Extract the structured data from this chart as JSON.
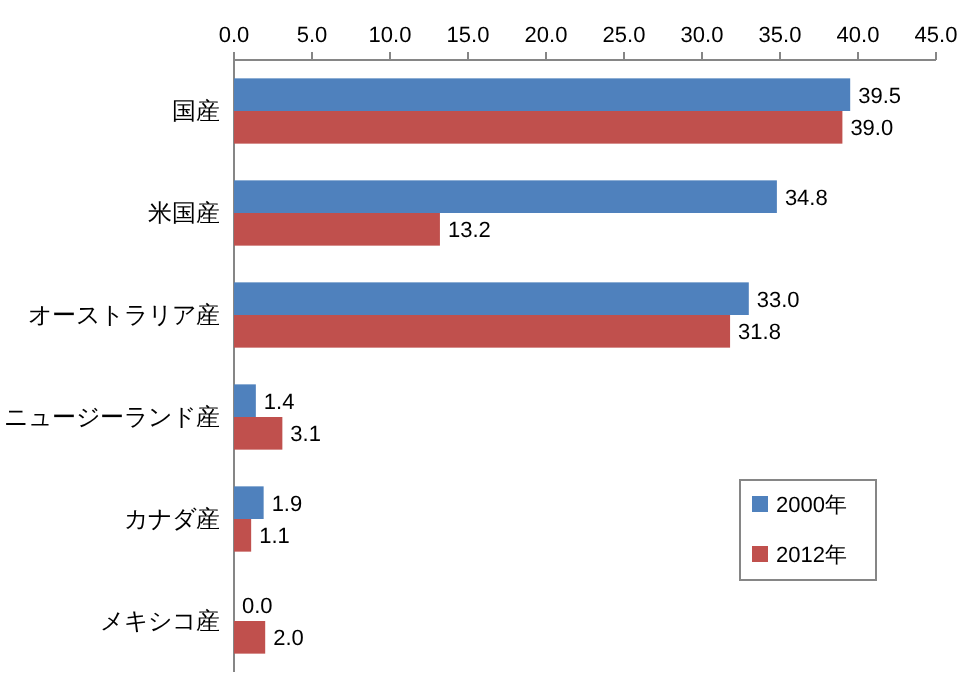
{
  "chart_data": {
    "type": "bar",
    "orientation": "horizontal",
    "categories": [
      "国産",
      "米国産",
      "オーストラリア産",
      "ニュージーランド産",
      "カナダ産",
      "メキシコ産"
    ],
    "series": [
      {
        "name": "2000年",
        "color": "#4f81bd",
        "values": [
          39.5,
          34.8,
          33.0,
          1.4,
          1.9,
          0.0
        ],
        "value_labels": [
          "39.5",
          "34.8",
          "33.0",
          "1.4",
          "1.9",
          "0.0"
        ]
      },
      {
        "name": "2012年",
        "color": "#c0504d",
        "values": [
          39.0,
          13.2,
          31.8,
          3.1,
          1.1,
          2.0
        ],
        "value_labels": [
          "39.0",
          "13.2",
          "31.8",
          "3.1",
          "1.1",
          "2.0"
        ]
      }
    ],
    "xlim": [
      0,
      45
    ],
    "xticks": [
      {
        "value": 0,
        "label": "0.0"
      },
      {
        "value": 5,
        "label": "5.0"
      },
      {
        "value": 10,
        "label": "10.0"
      },
      {
        "value": 15,
        "label": "15.0"
      },
      {
        "value": 20,
        "label": "20.0"
      },
      {
        "value": 25,
        "label": "25.0"
      },
      {
        "value": 30,
        "label": "30.0"
      },
      {
        "value": 35,
        "label": "35.0"
      },
      {
        "value": 40,
        "label": "40.0"
      },
      {
        "value": 45,
        "label": "45.0"
      }
    ],
    "legend": "bottom right"
  }
}
